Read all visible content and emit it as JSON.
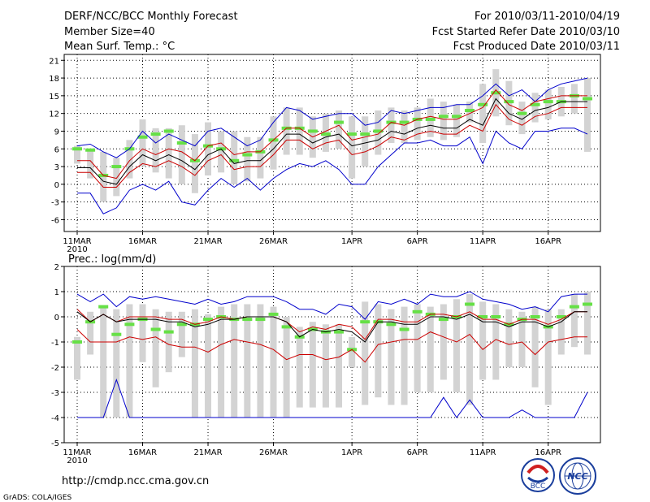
{
  "header": {
    "left_lines": [
      "DERF/NCC/BCC Monthly Forecast",
      "Member Size=40",
      "Mean Surf. Temp.: °C"
    ],
    "right_lines": [
      "For 2010/03/11-2010/04/19",
      "Fcst Started Refer Date 2010/03/10",
      "Fcst Produced Date 2010/03/11"
    ]
  },
  "footer": {
    "url": "http://cmdp.ncc.cma.gov.cn",
    "credit": "GrADS: COLA/IGES",
    "logos": [
      "BCC",
      "NCC"
    ]
  },
  "colors": {
    "envelope": "#0000cc",
    "spread": "#cc0000",
    "mean": "#000000",
    "climatology": "#66e046",
    "range_bar": "#d3d3d3",
    "grid": "#000000"
  },
  "chart_data": [
    {
      "type": "line",
      "title": "Mean Surf. Temp.: °C",
      "xlabel": "",
      "ylabel": "",
      "x_tick_labels": [
        "11MAR\n2010",
        "16MAR",
        "21MAR",
        "26MAR",
        "1APR",
        "6APR",
        "11APR",
        "16APR"
      ],
      "x_tick_days": [
        0,
        5,
        10,
        15,
        21,
        26,
        31,
        36
      ],
      "ylim": [
        -8,
        22
      ],
      "y_ticks": [
        -6,
        -3,
        0,
        3,
        6,
        9,
        12,
        15,
        18,
        21
      ],
      "series": [
        {
          "name": "max",
          "color": "#0000cc",
          "values": [
            6.5,
            6.8,
            5.5,
            4.5,
            6.0,
            9.0,
            7.0,
            8.5,
            7.5,
            6.5,
            9.0,
            9.5,
            8.0,
            6.5,
            7.5,
            10.5,
            13.0,
            12.5,
            11.0,
            11.5,
            12.0,
            12.0,
            10.0,
            10.5,
            12.5,
            12.0,
            12.5,
            13.0,
            13.0,
            13.5,
            13.5,
            15.0,
            17.0,
            15.0,
            16.0,
            14.0,
            16.0,
            17.0,
            17.5,
            18.0
          ]
        },
        {
          "name": "upper_spread",
          "color": "#cc0000",
          "values": [
            4.0,
            4.0,
            1.5,
            1.0,
            4.0,
            6.0,
            5.0,
            6.0,
            5.5,
            4.0,
            6.5,
            7.0,
            5.0,
            5.5,
            5.5,
            7.5,
            9.5,
            9.5,
            8.0,
            9.0,
            10.0,
            7.5,
            8.0,
            8.5,
            10.5,
            10.0,
            11.0,
            11.5,
            11.0,
            11.0,
            12.0,
            13.0,
            16.0,
            13.5,
            12.5,
            14.0,
            14.5,
            15.0,
            15.0,
            15.0
          ]
        },
        {
          "name": "ensemble_mean",
          "color": "#000000",
          "values": [
            2.8,
            2.8,
            0.5,
            0.0,
            3.0,
            5.0,
            4.0,
            5.0,
            4.0,
            2.5,
            5.0,
            6.0,
            3.5,
            4.0,
            4.0,
            6.0,
            8.5,
            8.5,
            7.0,
            8.0,
            8.5,
            6.5,
            7.0,
            7.5,
            9.0,
            8.5,
            9.5,
            10.0,
            9.5,
            9.5,
            11.0,
            10.0,
            14.5,
            12.0,
            11.0,
            12.5,
            13.0,
            14.0,
            14.0,
            14.0
          ]
        },
        {
          "name": "lower_spread",
          "color": "#cc0000",
          "values": [
            2.0,
            2.0,
            -0.5,
            -0.5,
            2.0,
            3.5,
            3.0,
            4.0,
            3.0,
            1.5,
            4.0,
            5.0,
            2.5,
            3.0,
            3.0,
            5.0,
            7.5,
            7.5,
            6.0,
            7.0,
            7.5,
            5.0,
            5.5,
            6.5,
            8.0,
            7.5,
            8.5,
            9.0,
            8.5,
            8.5,
            10.0,
            9.0,
            13.5,
            11.0,
            10.0,
            11.5,
            12.0,
            13.0,
            13.0,
            13.0
          ]
        },
        {
          "name": "min",
          "color": "#0000cc",
          "values": [
            -1.5,
            -1.5,
            -5.0,
            -4.0,
            -1.0,
            0.0,
            -1.0,
            0.5,
            -3.0,
            -3.5,
            -1.0,
            1.0,
            -0.5,
            1.0,
            -1.0,
            1.0,
            2.5,
            3.5,
            3.0,
            4.0,
            2.5,
            0.0,
            0.0,
            3.0,
            5.0,
            7.0,
            7.0,
            7.5,
            6.5,
            6.5,
            8.0,
            3.5,
            9.0,
            7.0,
            6.0,
            9.0,
            9.0,
            9.5,
            9.5,
            8.5
          ]
        }
      ],
      "range_bars": [
        [
          3.5,
          6.5
        ],
        [
          1.0,
          6.0
        ],
        [
          -3.0,
          5.5
        ],
        [
          -2.0,
          4.5
        ],
        [
          1.0,
          7.5
        ],
        [
          3.0,
          11.0
        ],
        [
          2.0,
          9.5
        ],
        [
          1.0,
          9.5
        ],
        [
          0.0,
          10.0
        ],
        [
          -1.5,
          8.5
        ],
        [
          1.5,
          10.5
        ],
        [
          2.0,
          9.0
        ],
        [
          0.0,
          9.0
        ],
        [
          0.5,
          8.0
        ],
        [
          1.0,
          8.0
        ],
        [
          2.5,
          11.5
        ],
        [
          5.0,
          13.0
        ],
        [
          5.0,
          13.0
        ],
        [
          4.5,
          11.5
        ],
        [
          5.5,
          12.0
        ],
        [
          6.0,
          12.5
        ],
        [
          1.0,
          11.5
        ],
        [
          3.0,
          11.5
        ],
        [
          5.0,
          12.5
        ],
        [
          7.0,
          13.0
        ],
        [
          7.0,
          12.5
        ],
        [
          7.5,
          13.0
        ],
        [
          8.0,
          14.5
        ],
        [
          7.5,
          14.0
        ],
        [
          8.0,
          13.5
        ],
        [
          10.5,
          14.0
        ],
        [
          7.0,
          17.0
        ],
        [
          11.5,
          19.5
        ],
        [
          10.0,
          17.5
        ],
        [
          8.5,
          14.0
        ],
        [
          10.5,
          15.5
        ],
        [
          11.0,
          16.0
        ],
        [
          11.5,
          16.5
        ],
        [
          12.0,
          17.0
        ],
        [
          5.5,
          18.0
        ]
      ],
      "climatology": [
        6.0,
        5.8,
        1.5,
        3.0,
        6.0,
        8.0,
        8.5,
        9.0,
        7.0,
        4.0,
        6.5,
        6.0,
        4.0,
        5.0,
        5.5,
        7.5,
        9.5,
        9.5,
        9.0,
        8.5,
        10.5,
        8.5,
        8.5,
        9.0,
        10.5,
        10.5,
        11.0,
        11.0,
        11.5,
        11.5,
        12.5,
        13.5,
        15.5,
        14.0,
        12.0,
        13.5,
        14.0,
        14.0,
        15.0,
        14.5
      ]
    },
    {
      "type": "line",
      "title": "Prec.: log(mm/d)",
      "xlabel": "",
      "ylabel": "",
      "x_tick_labels": [
        "11MAR\n2010",
        "16MAR",
        "21MAR",
        "26MAR",
        "1APR",
        "6APR",
        "11APR",
        "16APR"
      ],
      "x_tick_days": [
        0,
        5,
        10,
        15,
        21,
        26,
        31,
        36
      ],
      "ylim": [
        -5,
        2
      ],
      "y_ticks": [
        -5,
        -4,
        -3,
        -2,
        -1,
        0,
        1,
        2
      ],
      "series": [
        {
          "name": "max",
          "color": "#0000cc",
          "values": [
            0.9,
            0.6,
            0.9,
            0.4,
            0.8,
            0.7,
            0.8,
            0.7,
            0.6,
            0.5,
            0.7,
            0.5,
            0.6,
            0.8,
            0.8,
            0.8,
            0.6,
            0.3,
            0.3,
            0.1,
            0.5,
            0.4,
            -0.1,
            0.6,
            0.5,
            0.7,
            0.5,
            0.9,
            0.8,
            0.8,
            1.0,
            0.7,
            0.6,
            0.5,
            0.3,
            0.4,
            0.2,
            0.8,
            0.9,
            0.9
          ]
        },
        {
          "name": "upper_spread",
          "color": "#cc0000",
          "values": [
            0.3,
            -0.2,
            0.1,
            -0.2,
            0.0,
            0.0,
            0.0,
            -0.1,
            -0.1,
            -0.3,
            -0.2,
            0.0,
            -0.1,
            0.0,
            0.0,
            0.0,
            -0.2,
            -0.6,
            -0.4,
            -0.5,
            -0.3,
            -0.4,
            -0.9,
            -0.1,
            -0.1,
            -0.2,
            -0.2,
            0.1,
            0.1,
            0.0,
            0.2,
            -0.1,
            -0.1,
            -0.3,
            -0.1,
            -0.1,
            -0.3,
            -0.1,
            0.2,
            0.2
          ]
        },
        {
          "name": "ensemble_mean",
          "color": "#000000",
          "values": [
            0.2,
            -0.2,
            0.1,
            -0.2,
            -0.1,
            -0.1,
            -0.1,
            -0.2,
            -0.2,
            -0.4,
            -0.3,
            -0.1,
            -0.1,
            0.0,
            0.0,
            0.0,
            -0.2,
            -0.8,
            -0.5,
            -0.6,
            -0.5,
            -0.6,
            -1.0,
            -0.2,
            -0.2,
            -0.3,
            -0.3,
            0.0,
            0.0,
            -0.1,
            0.1,
            -0.2,
            -0.2,
            -0.4,
            -0.2,
            -0.2,
            -0.4,
            -0.2,
            0.2,
            0.2
          ]
        },
        {
          "name": "lower_spread",
          "color": "#cc0000",
          "values": [
            -0.5,
            -1.0,
            -1.0,
            -1.0,
            -0.8,
            -0.9,
            -0.8,
            -1.1,
            -1.2,
            -1.2,
            -1.4,
            -1.1,
            -0.9,
            -1.0,
            -1.1,
            -1.3,
            -1.7,
            -1.5,
            -1.5,
            -1.7,
            -1.6,
            -1.3,
            -1.8,
            -1.1,
            -1.0,
            -0.9,
            -0.9,
            -0.6,
            -0.8,
            -1.0,
            -0.7,
            -1.3,
            -0.9,
            -1.1,
            -1.0,
            -1.5,
            -1.0,
            -0.9,
            -0.8,
            -0.8
          ]
        },
        {
          "name": "min",
          "color": "#0000cc",
          "values": [
            -4.0,
            -4.0,
            -4.0,
            -2.5,
            -4.0,
            -4.0,
            -4.0,
            -4.0,
            -4.0,
            -4.0,
            -4.0,
            -4.0,
            -4.0,
            -4.0,
            -4.0,
            -4.0,
            -4.0,
            -4.0,
            -4.0,
            -4.0,
            -4.0,
            -4.0,
            -4.0,
            -4.0,
            -4.0,
            -4.0,
            -4.0,
            -4.0,
            -3.2,
            -4.0,
            -3.3,
            -4.0,
            -4.0,
            -4.0,
            -3.7,
            -4.0,
            -4.0,
            -4.0,
            -4.0,
            -3.0
          ]
        },
        {
          "name": "climatology",
          "color": "#66e046",
          "values": [
            -1.0,
            -0.2,
            0.4,
            -0.7,
            -0.3,
            -0.1,
            -0.5,
            -0.6,
            -0.3,
            -0.3,
            -0.1,
            0.0,
            -0.1,
            -0.1,
            -0.1,
            0.1,
            -0.4,
            -0.8,
            -0.5,
            -0.6,
            -0.6,
            -1.3,
            -0.2,
            -0.2,
            -0.3,
            -0.5,
            0.2,
            0.1,
            -0.1,
            0.0,
            0.5,
            0.0,
            0.0,
            -0.3,
            -0.1,
            0.0,
            -0.4,
            0.0,
            0.4,
            0.5
          ]
        }
      ],
      "range_bars": [
        [
          -2.5,
          -0.8
        ],
        [
          -1.5,
          0.2
        ],
        [
          -4.0,
          0.4
        ],
        [
          -4.0,
          0.3
        ],
        [
          -4.0,
          0.5
        ],
        [
          -1.8,
          0.5
        ],
        [
          -2.8,
          0.3
        ],
        [
          -2.2,
          0.2
        ],
        [
          -1.6,
          0.2
        ],
        [
          -4.0,
          0.3
        ],
        [
          -4.0,
          0.1
        ],
        [
          -4.0,
          0.4
        ],
        [
          -4.0,
          0.5
        ],
        [
          -4.0,
          0.5
        ],
        [
          -4.0,
          0.5
        ],
        [
          -4.0,
          0.4
        ],
        [
          -4.0,
          0.0
        ],
        [
          -3.6,
          -0.4
        ],
        [
          -3.6,
          -0.2
        ],
        [
          -3.6,
          -0.3
        ],
        [
          -3.6,
          -0.3
        ],
        [
          -2.0,
          -0.8
        ],
        [
          -3.5,
          0.6
        ],
        [
          -3.2,
          0.5
        ],
        [
          -3.5,
          0.3
        ],
        [
          -3.5,
          0.4
        ],
        [
          -3.0,
          0.5
        ],
        [
          -3.0,
          0.4
        ],
        [
          -2.5,
          0.5
        ],
        [
          -3.0,
          0.7
        ],
        [
          -3.5,
          0.9
        ],
        [
          -2.5,
          0.6
        ],
        [
          -2.5,
          0.5
        ],
        [
          -2.0,
          0.3
        ],
        [
          -2.0,
          0.2
        ],
        [
          -2.8,
          0.4
        ],
        [
          -3.5,
          0.3
        ],
        [
          -1.5,
          0.3
        ],
        [
          -1.2,
          0.9
        ],
        [
          -1.5,
          1.0
        ]
      ]
    }
  ]
}
